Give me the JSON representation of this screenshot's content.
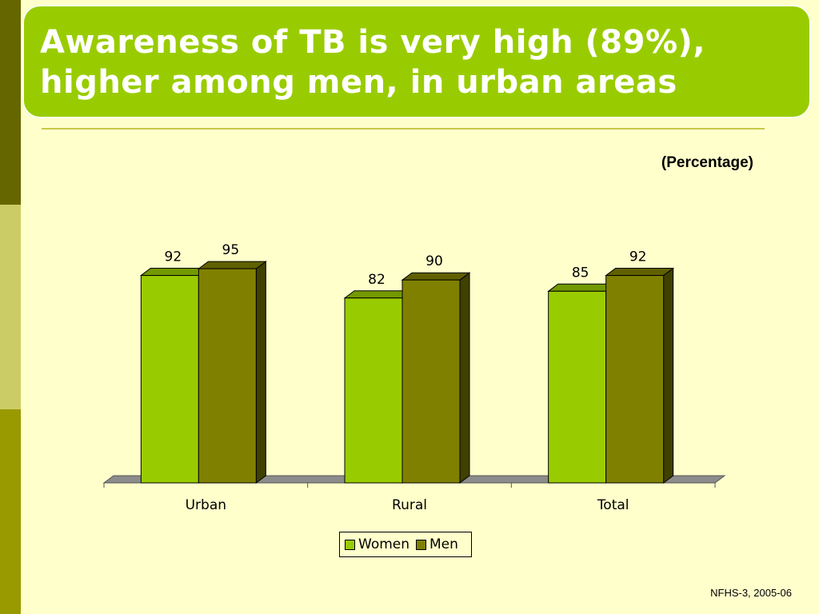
{
  "title": "Awareness of TB is very high (89%), higher among men, in urban areas",
  "unit_label": "(Percentage)",
  "source": "NFHS-3, 2005-06",
  "colors": {
    "women": "#99cc00",
    "men": "#808000",
    "background": "#ffffcc",
    "title_bar": "#99cc00"
  },
  "chart_data": {
    "type": "bar",
    "categories": [
      "Urban",
      "Rural",
      "Total"
    ],
    "series": [
      {
        "name": "Women",
        "values": [
          92,
          82,
          85
        ]
      },
      {
        "name": "Men",
        "values": [
          95,
          90,
          92
        ]
      }
    ],
    "ylim": [
      0,
      100
    ],
    "grid": false,
    "legend_position": "bottom",
    "data_labels": true,
    "three_d": true
  }
}
